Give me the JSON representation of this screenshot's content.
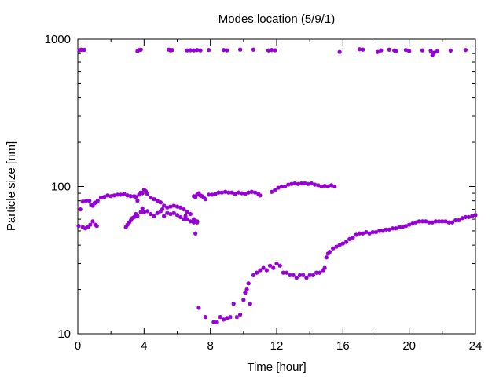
{
  "chart_data": {
    "type": "scatter",
    "title": "Modes location (5/9/1)",
    "xlabel": "Time [hour]",
    "ylabel": "Particle size [nm]",
    "xlim": [
      0,
      24
    ],
    "ylim": [
      10,
      1000
    ],
    "yscale": "log",
    "grid": false,
    "legend": "none",
    "x_ticks": [
      0,
      4,
      8,
      12,
      16,
      20,
      24
    ],
    "x_tick_labels": [
      "0",
      "4",
      "8",
      "12",
      "16",
      "20",
      "24"
    ],
    "y_ticks": [
      10,
      100,
      1000
    ],
    "y_tick_labels": [
      "10",
      "100",
      "1000"
    ],
    "marker_color": "#9400d3",
    "series": [
      {
        "points": [
          [
            0.1,
            840
          ],
          [
            0.2,
            850
          ],
          [
            0.3,
            845
          ],
          [
            0.4,
            848
          ],
          [
            3.6,
            830
          ],
          [
            3.7,
            845
          ],
          [
            3.8,
            850
          ],
          [
            5.5,
            850
          ],
          [
            5.6,
            840
          ],
          [
            5.7,
            845
          ],
          [
            6.6,
            840
          ],
          [
            6.8,
            842
          ],
          [
            7.0,
            840
          ],
          [
            7.2,
            845
          ],
          [
            7.4,
            840
          ],
          [
            7.9,
            845
          ],
          [
            8.8,
            845
          ],
          [
            9.0,
            840
          ],
          [
            9.8,
            850
          ],
          [
            10.6,
            850
          ],
          [
            11.5,
            840
          ],
          [
            11.7,
            845
          ],
          [
            11.9,
            842
          ],
          [
            15.8,
            820
          ],
          [
            17.0,
            855
          ],
          [
            17.2,
            850
          ],
          [
            18.1,
            820
          ],
          [
            18.3,
            840
          ],
          [
            18.8,
            850
          ],
          [
            19.1,
            840
          ],
          [
            19.2,
            830
          ],
          [
            19.8,
            845
          ],
          [
            20.0,
            830
          ],
          [
            20.8,
            840
          ],
          [
            21.3,
            835
          ],
          [
            21.4,
            780
          ],
          [
            21.5,
            810
          ],
          [
            21.7,
            830
          ],
          [
            22.5,
            838
          ],
          [
            23.4,
            845
          ]
        ]
      },
      {
        "points": [
          [
            0.05,
            54
          ],
          [
            0.15,
            70
          ],
          [
            0.3,
            53
          ],
          [
            0.45,
            52
          ],
          [
            0.6,
            53
          ],
          [
            0.75,
            55
          ],
          [
            0.9,
            58
          ],
          [
            1.05,
            55
          ],
          [
            1.15,
            54
          ],
          [
            0.3,
            79
          ],
          [
            0.5,
            80
          ],
          [
            0.7,
            80
          ],
          [
            0.8,
            75
          ],
          [
            0.9,
            74
          ],
          [
            1.0,
            77
          ],
          [
            1.1,
            78
          ],
          [
            1.2,
            80
          ],
          [
            1.4,
            84
          ],
          [
            1.6,
            85
          ],
          [
            1.8,
            87
          ],
          [
            2.0,
            86
          ],
          [
            2.2,
            87
          ],
          [
            2.4,
            88
          ],
          [
            2.6,
            88
          ],
          [
            2.8,
            89
          ],
          [
            3.0,
            87
          ],
          [
            3.2,
            86
          ],
          [
            3.4,
            86
          ],
          [
            3.5,
            85
          ],
          [
            3.6,
            80
          ],
          [
            3.7,
            88
          ],
          [
            3.8,
            91
          ],
          [
            3.9,
            90
          ],
          [
            4.0,
            95
          ],
          [
            4.1,
            93
          ],
          [
            4.2,
            89
          ],
          [
            4.4,
            84
          ],
          [
            4.6,
            82
          ],
          [
            4.8,
            80
          ],
          [
            5.0,
            78
          ],
          [
            5.2,
            74
          ],
          [
            5.4,
            72
          ],
          [
            5.6,
            73
          ],
          [
            5.8,
            74
          ],
          [
            6.0,
            73
          ],
          [
            6.2,
            72
          ],
          [
            6.4,
            70
          ],
          [
            6.6,
            67
          ],
          [
            6.8,
            65
          ],
          [
            7.0,
            60
          ],
          [
            7.2,
            58
          ],
          [
            2.9,
            53
          ],
          [
            3.0,
            55
          ],
          [
            3.1,
            57
          ],
          [
            3.2,
            59
          ],
          [
            3.3,
            61
          ],
          [
            3.4,
            62
          ],
          [
            3.5,
            65
          ],
          [
            3.6,
            63
          ],
          [
            3.8,
            67
          ],
          [
            3.9,
            71
          ],
          [
            4.0,
            67
          ],
          [
            4.2,
            68
          ],
          [
            4.4,
            65
          ],
          [
            4.6,
            63
          ],
          [
            4.8,
            66
          ],
          [
            5.0,
            68
          ],
          [
            5.1,
            70
          ],
          [
            5.2,
            63
          ],
          [
            5.4,
            66
          ],
          [
            5.6,
            65
          ],
          [
            5.8,
            66
          ],
          [
            6.0,
            64
          ],
          [
            6.2,
            62
          ],
          [
            6.4,
            60
          ],
          [
            6.5,
            63
          ],
          [
            6.6,
            60
          ],
          [
            6.8,
            58
          ],
          [
            7.0,
            57
          ],
          [
            7.1,
            48
          ],
          [
            7.2,
            57
          ],
          [
            7.0,
            86
          ],
          [
            7.1,
            85
          ],
          [
            7.2,
            88
          ],
          [
            7.3,
            90
          ],
          [
            7.4,
            87
          ],
          [
            7.5,
            86
          ],
          [
            7.6,
            84
          ],
          [
            7.7,
            82
          ],
          [
            7.9,
            88
          ],
          [
            8.1,
            88
          ],
          [
            8.3,
            89
          ],
          [
            8.5,
            91
          ],
          [
            8.7,
            91
          ],
          [
            8.9,
            92
          ],
          [
            9.1,
            91
          ],
          [
            9.3,
            91
          ],
          [
            9.5,
            89
          ],
          [
            9.7,
            91
          ],
          [
            9.9,
            90
          ],
          [
            10.1,
            89
          ],
          [
            10.3,
            91
          ],
          [
            10.5,
            92
          ],
          [
            10.7,
            91
          ],
          [
            10.9,
            89
          ],
          [
            11.0,
            87
          ],
          [
            11.7,
            92
          ],
          [
            11.9,
            95
          ],
          [
            12.1,
            98
          ],
          [
            12.3,
            100
          ],
          [
            12.5,
            100
          ],
          [
            12.7,
            103
          ],
          [
            12.9,
            104
          ],
          [
            13.1,
            105
          ],
          [
            13.3,
            104
          ],
          [
            13.5,
            105
          ],
          [
            13.7,
            105
          ],
          [
            13.9,
            104
          ],
          [
            14.1,
            105
          ],
          [
            14.3,
            103
          ],
          [
            14.5,
            102
          ],
          [
            14.7,
            100
          ],
          [
            14.9,
            101
          ],
          [
            15.1,
            100
          ],
          [
            15.3,
            102
          ],
          [
            15.5,
            100
          ],
          [
            7.3,
            15
          ],
          [
            7.7,
            13
          ],
          [
            8.2,
            12
          ],
          [
            8.4,
            12
          ],
          [
            8.6,
            13
          ],
          [
            8.8,
            12.5
          ],
          [
            9.0,
            12.8
          ],
          [
            9.2,
            13
          ],
          [
            9.4,
            16
          ],
          [
            9.6,
            13
          ],
          [
            9.8,
            13.5
          ],
          [
            10.0,
            17
          ],
          [
            10.1,
            19
          ],
          [
            10.2,
            20
          ],
          [
            10.3,
            22
          ],
          [
            10.4,
            16
          ],
          [
            10.6,
            25
          ],
          [
            10.8,
            26
          ],
          [
            11.0,
            27
          ],
          [
            11.2,
            28
          ],
          [
            11.4,
            27
          ],
          [
            11.6,
            29
          ],
          [
            11.8,
            28
          ],
          [
            12.0,
            30
          ],
          [
            12.2,
            29
          ],
          [
            12.4,
            26
          ],
          [
            12.6,
            26
          ],
          [
            12.8,
            25
          ],
          [
            13.0,
            25
          ],
          [
            13.2,
            24
          ],
          [
            13.4,
            25
          ],
          [
            13.6,
            25
          ],
          [
            13.8,
            24
          ],
          [
            14.0,
            25
          ],
          [
            14.2,
            25
          ],
          [
            14.4,
            26
          ],
          [
            14.6,
            26
          ],
          [
            14.8,
            27
          ],
          [
            14.9,
            28
          ],
          [
            15.0,
            33
          ],
          [
            15.1,
            35
          ],
          [
            15.2,
            36
          ],
          [
            15.4,
            38
          ],
          [
            15.6,
            39
          ],
          [
            15.8,
            40
          ],
          [
            16.0,
            41
          ],
          [
            16.2,
            42
          ],
          [
            16.4,
            44
          ],
          [
            16.6,
            45
          ],
          [
            16.8,
            47
          ],
          [
            17.0,
            48
          ],
          [
            17.2,
            48
          ],
          [
            17.4,
            49
          ],
          [
            17.6,
            48
          ],
          [
            17.8,
            49
          ],
          [
            18.0,
            49
          ],
          [
            18.2,
            50
          ],
          [
            18.4,
            50
          ],
          [
            18.6,
            51
          ],
          [
            18.8,
            51
          ],
          [
            19.0,
            52
          ],
          [
            19.2,
            52
          ],
          [
            19.4,
            53
          ],
          [
            19.6,
            53
          ],
          [
            19.8,
            54
          ],
          [
            20.0,
            55
          ],
          [
            20.2,
            56
          ],
          [
            20.4,
            57
          ],
          [
            20.6,
            58
          ],
          [
            20.8,
            58
          ],
          [
            21.0,
            58
          ],
          [
            21.2,
            57
          ],
          [
            21.4,
            57
          ],
          [
            21.6,
            58
          ],
          [
            21.8,
            58
          ],
          [
            22.0,
            58
          ],
          [
            22.2,
            58
          ],
          [
            22.4,
            57
          ],
          [
            22.6,
            57
          ],
          [
            22.8,
            59
          ],
          [
            23.0,
            59
          ],
          [
            23.2,
            61
          ],
          [
            23.4,
            62
          ],
          [
            23.6,
            62
          ],
          [
            23.8,
            63
          ],
          [
            24.0,
            64
          ]
        ]
      }
    ]
  }
}
